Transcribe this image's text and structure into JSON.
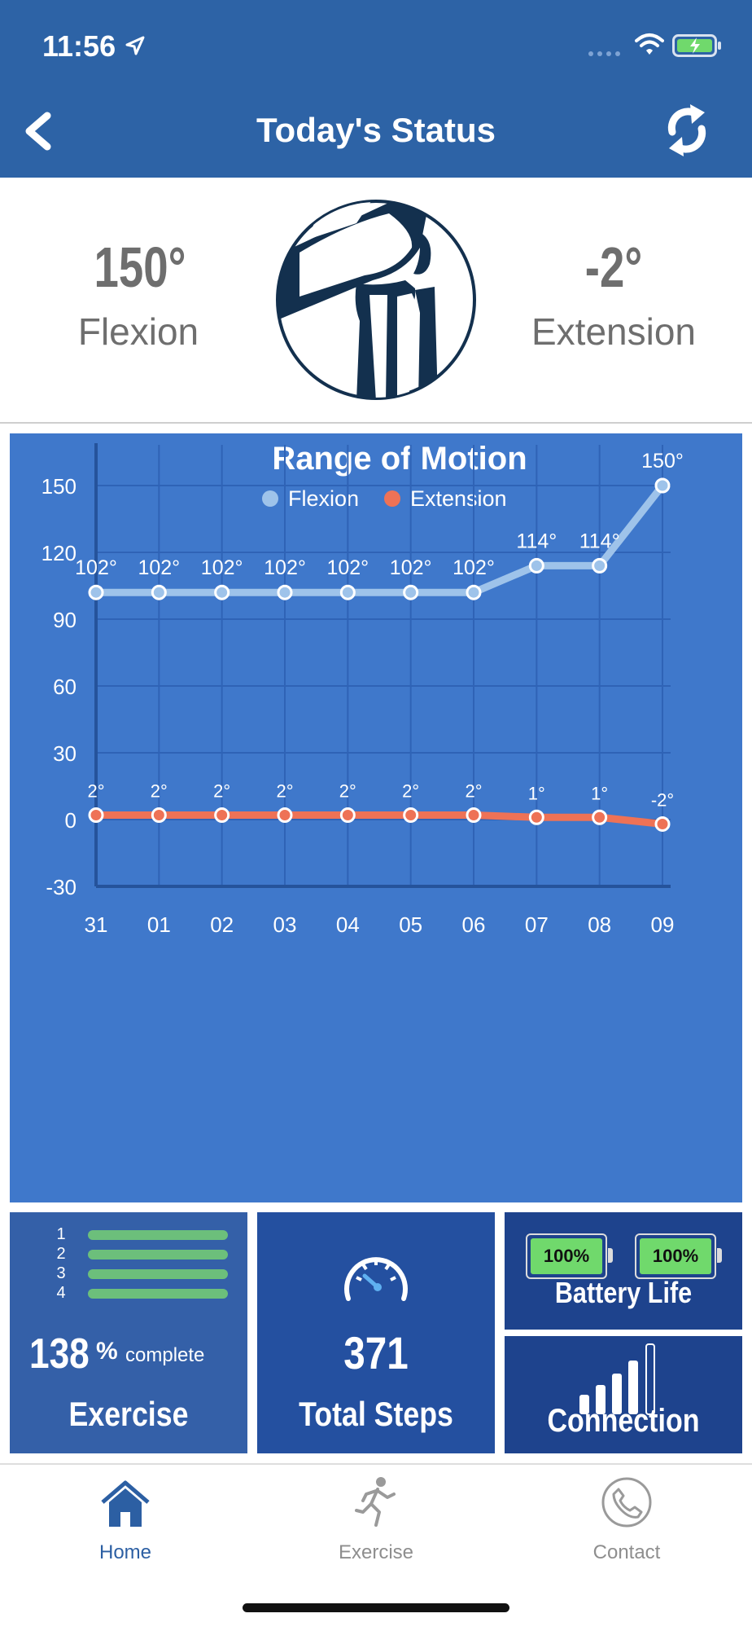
{
  "status_bar": {
    "time": "11:56"
  },
  "header": {
    "title": "Today's Status"
  },
  "status": {
    "flexion_value": "150°",
    "flexion_label": "Flexion",
    "extension_value": "-2°",
    "extension_label": "Extension"
  },
  "chart_data": {
    "type": "line",
    "title": "Range of Motion",
    "categories": [
      "31",
      "01",
      "02",
      "03",
      "04",
      "05",
      "06",
      "07",
      "08",
      "09"
    ],
    "series": [
      {
        "name": "Flexion",
        "color": "#9ec3ea",
        "values": [
          102,
          102,
          102,
          102,
          102,
          102,
          102,
          114,
          114,
          150
        ],
        "labels": [
          "102°",
          "102°",
          "102°",
          "102°",
          "102°",
          "102°",
          "102°",
          "114°",
          "114°",
          "150°"
        ]
      },
      {
        "name": "Extension",
        "color": "#ee7256",
        "values": [
          2,
          2,
          2,
          2,
          2,
          2,
          2,
          1,
          1,
          -2
        ],
        "labels": [
          "2°",
          "2°",
          "2°",
          "2°",
          "2°",
          "2°",
          "2°",
          "1°",
          "1°",
          "-2°"
        ]
      }
    ],
    "yticks": [
      "150",
      "120",
      "90",
      "60",
      "30",
      "0",
      "-30"
    ],
    "ytick_values": [
      150,
      120,
      90,
      60,
      30,
      0,
      -30
    ],
    "ylim": [
      -30,
      165
    ],
    "grid": true,
    "legend_position": "top-center"
  },
  "tiles": {
    "exercise": {
      "bars": [
        "1",
        "2",
        "3",
        "4"
      ],
      "percent": "138",
      "percent_sign": "%",
      "complete_text": "complete",
      "title": "Exercise"
    },
    "steps": {
      "value": "371",
      "title": "Total Steps"
    },
    "battery": {
      "left": "100%",
      "right": "100%",
      "title": "Battery Life"
    },
    "connection": {
      "title": "Connection"
    }
  },
  "tabs": [
    {
      "label": "Home",
      "icon": "home-icon",
      "color": "#2c5fa3"
    },
    {
      "label": "Exercise",
      "icon": "runner-icon",
      "color": "#8e8e8e"
    },
    {
      "label": "Contact",
      "icon": "phone-icon",
      "color": "#8e8e8e"
    }
  ]
}
